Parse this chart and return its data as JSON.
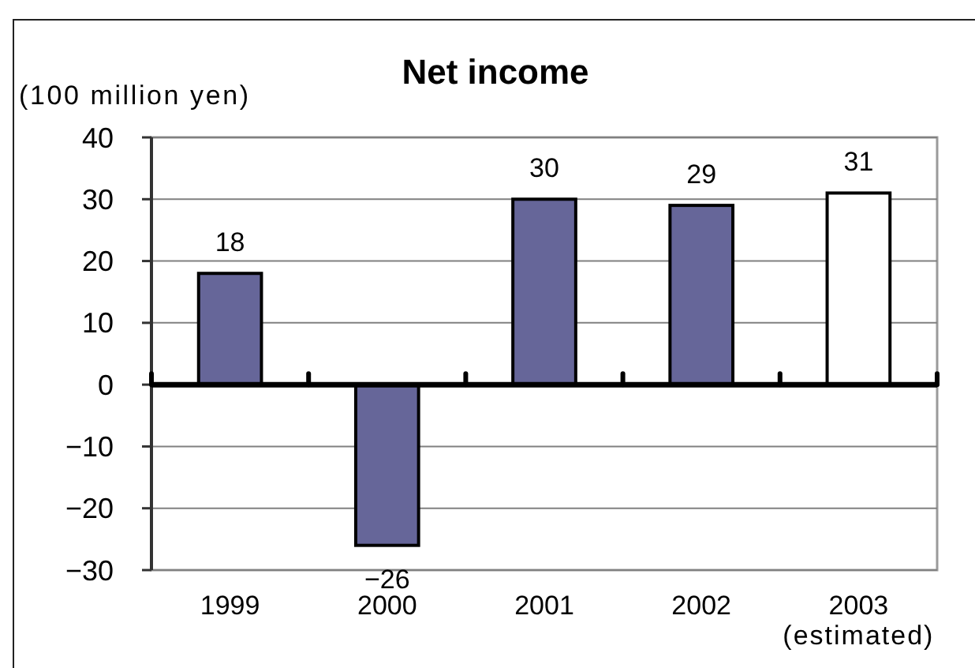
{
  "chart_data": {
    "type": "bar",
    "title": "Net income",
    "ylabel": "(100 million yen)",
    "categories": [
      "1999",
      "2000",
      "2001",
      "2002",
      "2003\n(estimated)"
    ],
    "values": [
      18,
      -26,
      30,
      29,
      31
    ],
    "colors": [
      "#666699",
      "#666699",
      "#666699",
      "#666699",
      "#ffffff"
    ],
    "ylim": [
      -30,
      40
    ],
    "yticks": [
      {
        "value": -30,
        "label": "−30"
      },
      {
        "value": -20,
        "label": "−20"
      },
      {
        "value": -10,
        "label": "−10"
      },
      0,
      10,
      20,
      30,
      40
    ],
    "grid": "y",
    "value_labels": [
      "18",
      "−26",
      "30",
      "29",
      "31"
    ]
  }
}
